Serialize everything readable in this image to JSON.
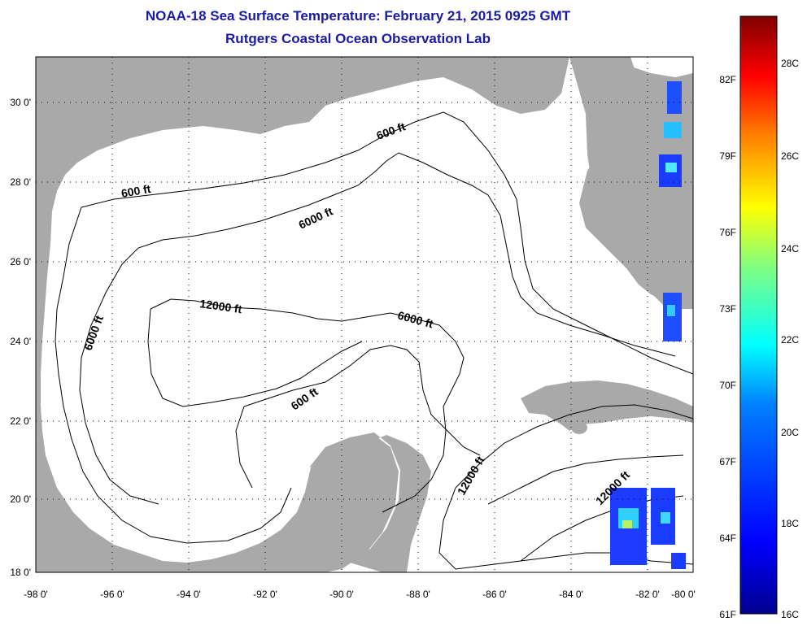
{
  "title_line1": "NOAA-18 Sea Surface Temperature:  February 21, 2015 0925 GMT",
  "title_line2": "Rutgers Coastal Ocean Observation Lab",
  "map": {
    "lon_range": [
      -98,
      -80
    ],
    "lat_range": [
      18,
      31
    ],
    "lon_ticks": [
      "-98 0'",
      "-96 0'",
      "-94 0'",
      "-92 0'",
      "-90 0'",
      "-88 0'",
      "-86 0'",
      "-84 0'",
      "-82 0'",
      "-80 0'"
    ],
    "lat_ticks": [
      "18 0'",
      "20 0'",
      "22 0'",
      "24 0'",
      "26 0'",
      "28 0'",
      "30 0'"
    ],
    "land_color": "#a9a9a9",
    "grid": "dotted",
    "contour_labels": [
      "600 ft",
      "6000 ft",
      "6000 ft",
      "12000 ft",
      "6000 ft",
      "600 ft",
      "600 ft",
      "12000 ft",
      "12000 ft"
    ]
  },
  "colorbar": {
    "celsius_labels": [
      "28C",
      "26C",
      "24C",
      "22C",
      "20C",
      "18C",
      "16C"
    ],
    "fahrenheit_labels": [
      "82F",
      "79F",
      "76F",
      "73F",
      "70F",
      "67F",
      "64F",
      "61F"
    ],
    "colors": [
      "#00008f",
      "#0000ff",
      "#0080ff",
      "#00ffff",
      "#80ff80",
      "#ffff00",
      "#ff8000",
      "#ff0000",
      "#800000"
    ]
  }
}
